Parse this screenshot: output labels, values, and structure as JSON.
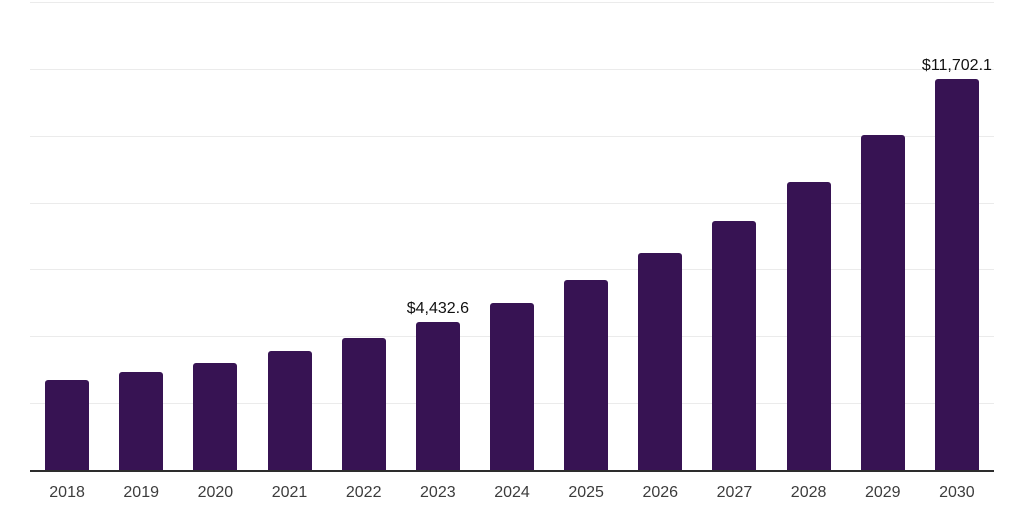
{
  "page": {
    "background_color": "#ffffff"
  },
  "chart_data": {
    "type": "bar",
    "title": "",
    "xlabel": "",
    "ylabel": "",
    "categories": [
      "2018",
      "2019",
      "2020",
      "2021",
      "2022",
      "2023",
      "2024",
      "2025",
      "2026",
      "2027",
      "2028",
      "2029",
      "2030"
    ],
    "values": [
      2680,
      2920,
      3210,
      3560,
      3950,
      4432.6,
      4990,
      5670,
      6490,
      7450,
      8630,
      10020,
      11702.1
    ],
    "data_labels": [
      {
        "index": 5,
        "text": "$4,432.6"
      },
      {
        "index": 12,
        "text": "$11,702.1"
      }
    ],
    "ylim": [
      0,
      14000
    ],
    "gridline_step": 2000,
    "grid": true,
    "legend": false,
    "y_axis_tick_labels_visible": false,
    "bar_color": "#371353",
    "gridline_color": "#ebebeb",
    "axis_line_color": "#2d2d2d",
    "tick_label_color": "#3c3c3c",
    "data_label_color": "#111111"
  }
}
